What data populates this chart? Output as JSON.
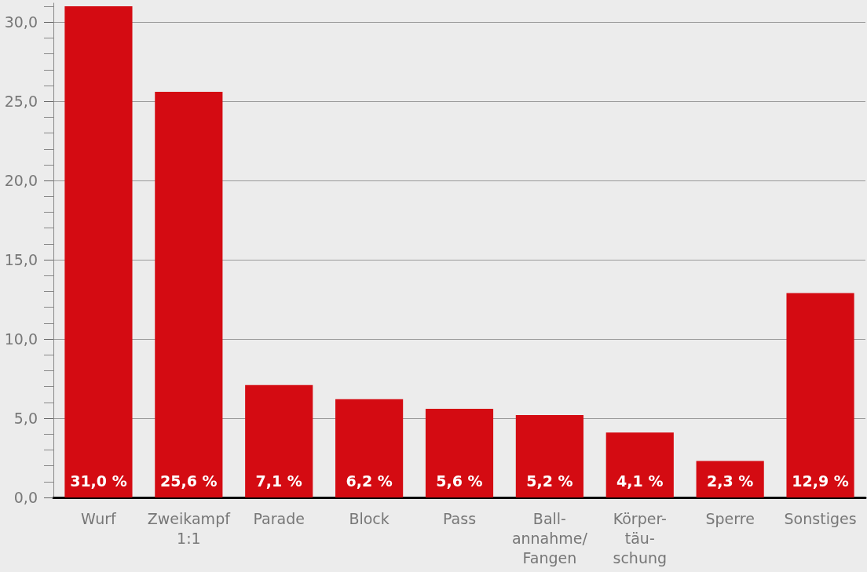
{
  "chart_data": {
    "type": "bar",
    "categories": [
      "Wurf",
      "Zweikampf\n1:1",
      "Parade",
      "Block",
      "Pass",
      "Ball-\nannahme/\nFangen",
      "Körper-\ntäu-\nschung",
      "Sperre",
      "Sonstiges"
    ],
    "values": [
      31.0,
      25.6,
      7.1,
      6.2,
      5.6,
      5.2,
      4.1,
      2.3,
      12.9
    ],
    "value_labels": [
      "31,0 %",
      "25,6 %",
      "7,1 %",
      "6,2 %",
      "5,6 %",
      "5,2 %",
      "4,1 %",
      "2,3 %",
      "12,9 %"
    ],
    "color": "#d40b12",
    "ylim": [
      0,
      31.2
    ],
    "yticks": [
      {
        "value": 0,
        "label": "0,0"
      },
      {
        "value": 5,
        "label": "5,0"
      },
      {
        "value": 10,
        "label": "10,0"
      },
      {
        "value": 15,
        "label": "15,0"
      },
      {
        "value": 20,
        "label": "20,0"
      },
      {
        "value": 25,
        "label": "25,0"
      },
      {
        "value": 30,
        "label": "30,0"
      }
    ],
    "grid": "y"
  }
}
